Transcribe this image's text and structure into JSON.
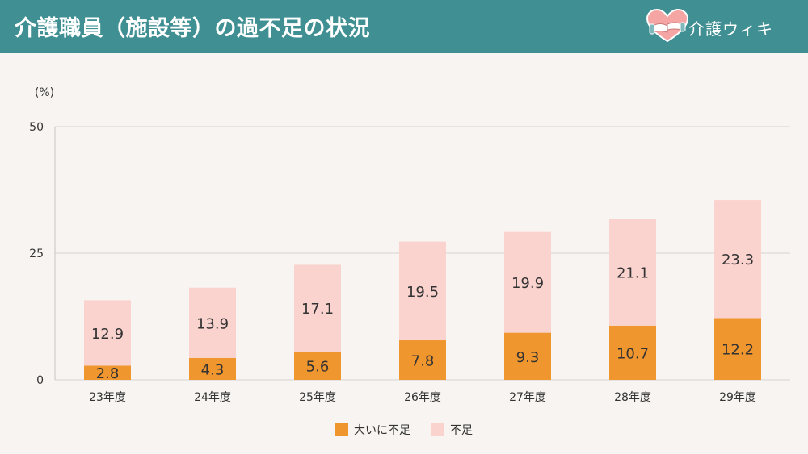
{
  "header": {
    "title": "介護職員（施設等）の過不足の状況",
    "brand_name": "介護ウィキ",
    "background_color": "#3f8f93",
    "logo_icon": "heart-hands-icon"
  },
  "chart_data": {
    "type": "bar",
    "stacked": true,
    "categories": [
      "23年度",
      "24年度",
      "25年度",
      "26年度",
      "27年度",
      "28年度",
      "29年度"
    ],
    "series": [
      {
        "name": "大いに不足",
        "values": [
          2.8,
          4.3,
          5.6,
          7.8,
          9.3,
          10.7,
          12.2
        ],
        "color": "#f0962e"
      },
      {
        "name": "不足",
        "values": [
          12.9,
          13.9,
          17.1,
          19.5,
          19.9,
          21.1,
          23.3
        ],
        "color": "#fad3cf"
      }
    ],
    "ylabel": "(%)",
    "ylim": [
      0,
      50
    ],
    "yticks": [
      0,
      25,
      50
    ],
    "grid": true,
    "legend_position": "bottom"
  }
}
